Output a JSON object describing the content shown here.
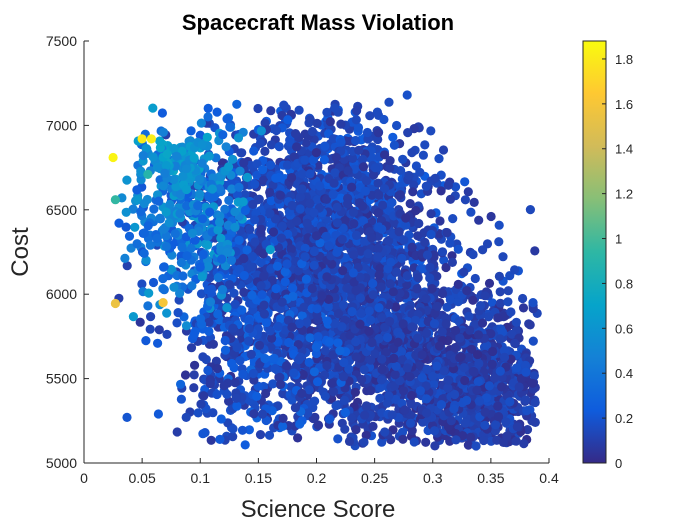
{
  "chart_data": {
    "type": "scatter",
    "title": "Spacecraft Mass Violation",
    "xlabel": "Science Score",
    "ylabel": "Cost",
    "xlim": [
      0,
      0.4
    ],
    "ylim": [
      5000,
      7500
    ],
    "xticks": [
      "0",
      "0.05",
      "0.1",
      "0.15",
      "0.2",
      "0.25",
      "0.3",
      "0.35",
      "0.4"
    ],
    "yticks": [
      "5000",
      "5500",
      "6000",
      "6500",
      "7000",
      "7500"
    ],
    "grid": false,
    "marker": "filled circle",
    "colormap": "parula",
    "colorbar": {
      "lim": [
        0,
        1.88
      ],
      "ticks": [
        "0",
        "0.2",
        "0.4",
        "0.6",
        "0.8",
        "1",
        "1.2",
        "1.4",
        "1.6",
        "1.8"
      ],
      "colors": [
        "#352a87",
        "#0f5cdd",
        "#1481d6",
        "#06a4ca",
        "#2eb7a4",
        "#87bf77",
        "#d1bb59",
        "#fec832",
        "#f9fb0e"
      ]
    },
    "highlighted_points": [
      {
        "x": 0.025,
        "y": 6810,
        "c": 1.85
      },
      {
        "x": 0.05,
        "y": 6920,
        "c": 1.8
      },
      {
        "x": 0.058,
        "y": 6920,
        "c": 1.82
      },
      {
        "x": 0.027,
        "y": 5945,
        "c": 1.55
      },
      {
        "x": 0.068,
        "y": 5950,
        "c": 1.6
      },
      {
        "x": 0.027,
        "y": 6560,
        "c": 0.95
      },
      {
        "x": 0.055,
        "y": 6710,
        "c": 0.9
      },
      {
        "x": 0.037,
        "y": 5270,
        "c": 0.2
      },
      {
        "x": 0.064,
        "y": 5290,
        "c": 0.22
      },
      {
        "x": 0.278,
        "y": 7180,
        "c": 0.18
      },
      {
        "x": 0.185,
        "y": 7090,
        "c": 0.15
      }
    ],
    "clusters": [
      {
        "cx": 0.2,
        "cy": 6400,
        "sx": 0.045,
        "sy": 380,
        "n": 1400,
        "c": [
          0.05,
          0.25
        ]
      },
      {
        "cx": 0.23,
        "cy": 6000,
        "sx": 0.055,
        "sy": 420,
        "n": 1300,
        "c": [
          0.03,
          0.2
        ]
      },
      {
        "cx": 0.34,
        "cy": 5450,
        "sx": 0.03,
        "sy": 220,
        "n": 800,
        "c": [
          0.02,
          0.18
        ]
      },
      {
        "cx": 0.27,
        "cy": 5600,
        "sx": 0.05,
        "sy": 250,
        "n": 600,
        "c": [
          0.02,
          0.18
        ]
      },
      {
        "cx": 0.15,
        "cy": 5700,
        "sx": 0.035,
        "sy": 300,
        "n": 400,
        "c": [
          0.05,
          0.3
        ]
      },
      {
        "cx": 0.09,
        "cy": 6500,
        "sx": 0.025,
        "sy": 300,
        "n": 350,
        "c": [
          0.2,
          0.65
        ]
      },
      {
        "cx": 0.08,
        "cy": 6800,
        "sx": 0.015,
        "sy": 80,
        "n": 80,
        "c": [
          0.45,
          0.75
        ]
      }
    ]
  }
}
